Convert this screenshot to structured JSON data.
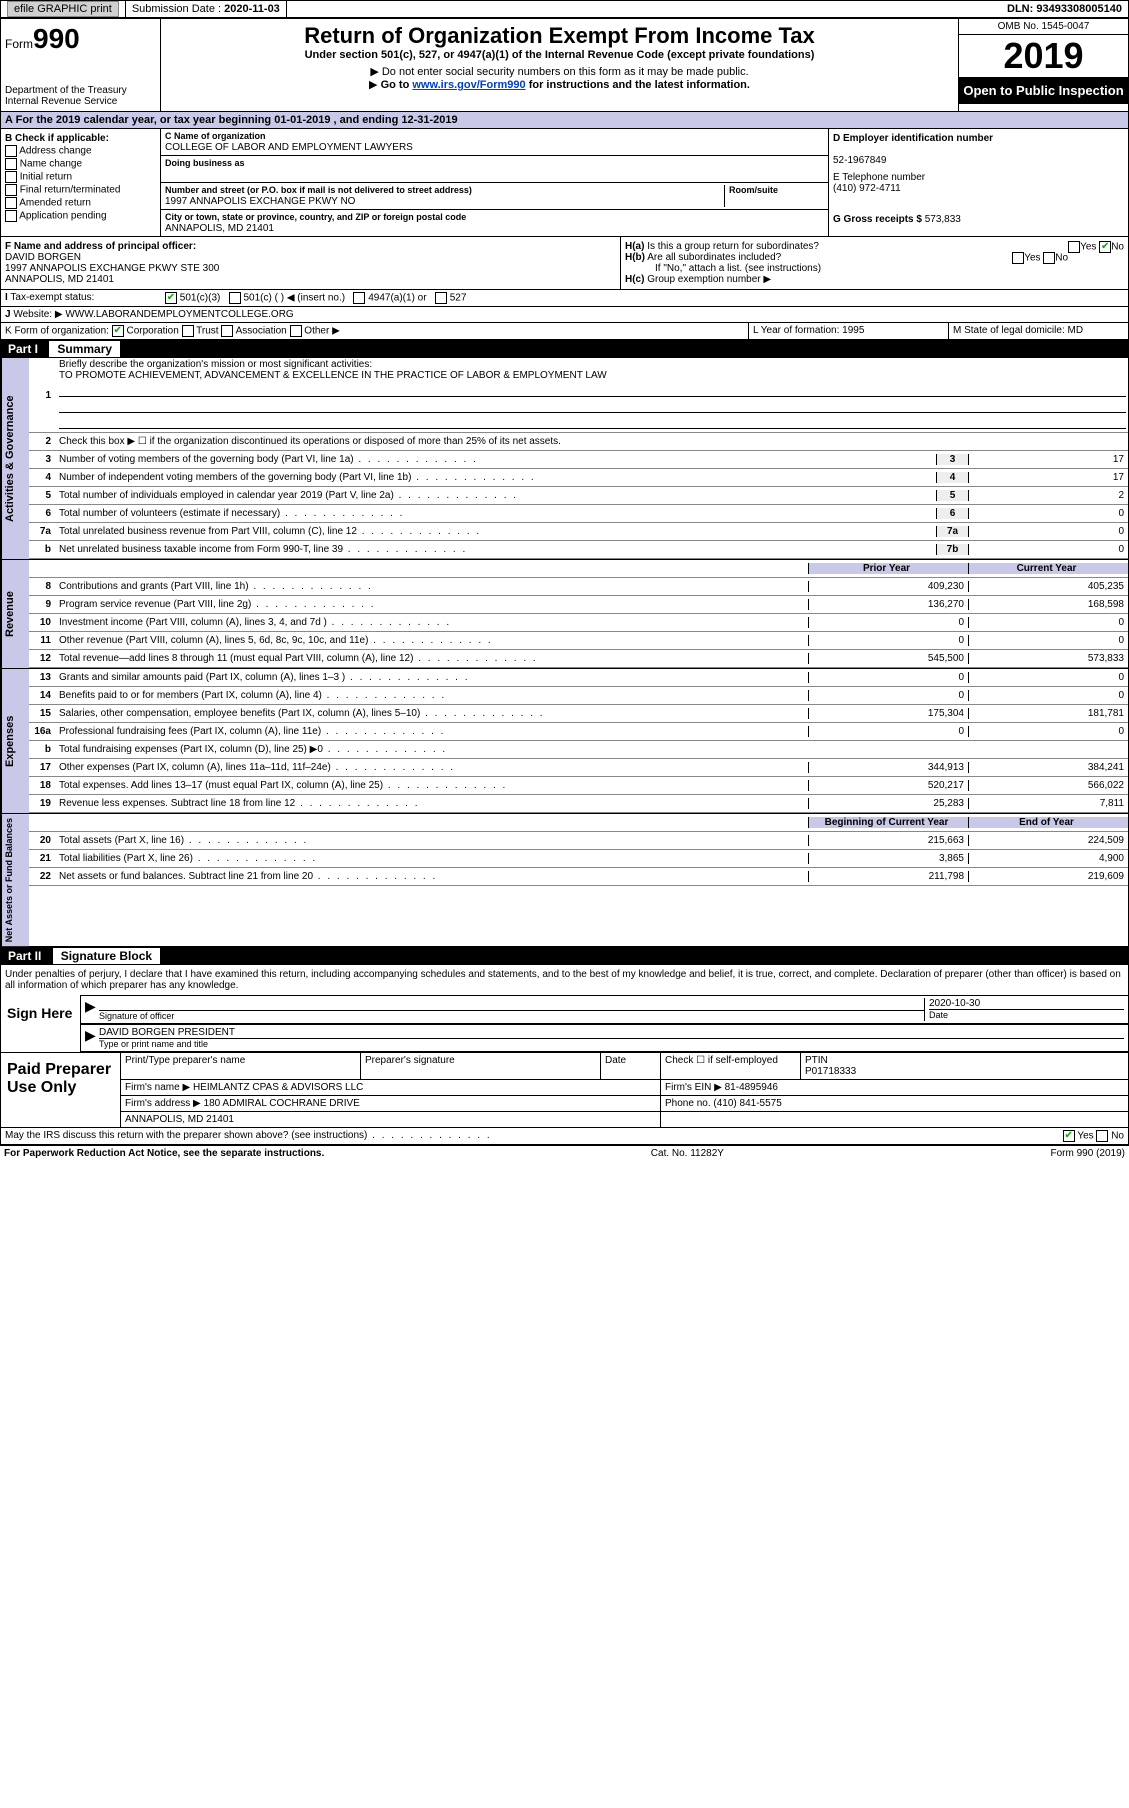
{
  "topbar": {
    "efile": "efile GRAPHIC print",
    "submission_label": "Submission Date :",
    "submission_date": "2020-11-03",
    "dln_label": "DLN:",
    "dln": "93493308005140"
  },
  "header": {
    "form_label": "Form",
    "form_number": "990",
    "dept": "Department of the Treasury\nInternal Revenue Service",
    "title": "Return of Organization Exempt From Income Tax",
    "subtitle": "Under section 501(c), 527, or 4947(a)(1) of the Internal Revenue Code (except private foundations)",
    "note1": "Do not enter social security numbers on this form as it may be made public.",
    "note2_pre": "Go to ",
    "note2_link": "www.irs.gov/Form990",
    "note2_post": " for instructions and the latest information.",
    "omb": "OMB No. 1545-0047",
    "year": "2019",
    "open": "Open to Public Inspection"
  },
  "period": "For the 2019 calendar year, or tax year beginning 01-01-2019   , and ending 12-31-2019",
  "checkB_label": "B Check if applicable:",
  "checkB": [
    "Address change",
    "Name change",
    "Initial return",
    "Final return/terminated",
    "Amended return",
    "Application pending"
  ],
  "colC": {
    "name_label": "C Name of organization",
    "name": "COLLEGE OF LABOR AND EMPLOYMENT LAWYERS",
    "dba_label": "Doing business as",
    "dba": "",
    "street_label": "Number and street (or P.O. box if mail is not delivered to street address)",
    "room_label": "Room/suite",
    "street": "1997 ANNAPOLIS EXCHANGE PKWY NO",
    "city_label": "City or town, state or province, country, and ZIP or foreign postal code",
    "city": "ANNAPOLIS, MD  21401"
  },
  "colD": {
    "ein_label": "D Employer identification number",
    "ein": "52-1967849",
    "phone_label": "E Telephone number",
    "phone": "(410) 972-4711",
    "gross_label": "G Gross receipts $",
    "gross": "573,833"
  },
  "colF": {
    "label": "F  Name and address of principal officer:",
    "name": "DAVID BORGEN",
    "addr1": "1997 ANNAPOLIS EXCHANGE PKWY STE 300",
    "addr2": "ANNAPOLIS, MD  21401"
  },
  "colH": {
    "ha": "Is this a group return for subordinates?",
    "hb": "Are all subordinates included?",
    "hb_note": "If \"No,\" attach a list. (see instructions)",
    "hc": "Group exemption number ▶",
    "yes": "Yes",
    "no": "No"
  },
  "sectionI": {
    "label": "Tax-exempt status:",
    "opt1": "501(c)(3)",
    "opt2": "501(c) (  ) ◀ (insert no.)",
    "opt3": "4947(a)(1) or",
    "opt4": "527"
  },
  "sectionJ": {
    "label": "Website: ▶",
    "value": "WWW.LABORANDEMPLOYMENTCOLLEGE.ORG"
  },
  "sectionK": {
    "label": "K Form of organization:",
    "opts": [
      "Corporation",
      "Trust",
      "Association",
      "Other ▶"
    ]
  },
  "sectionL": {
    "label": "L Year of formation:",
    "value": "1995"
  },
  "sectionM": {
    "label": "M State of legal domicile:",
    "value": "MD"
  },
  "part1": {
    "label": "Part I",
    "title": "Summary"
  },
  "gov": {
    "vlabel": "Activities & Governance",
    "l1": "Briefly describe the organization's mission or most significant activities:",
    "l1val": "TO PROMOTE ACHIEVEMENT, ADVANCEMENT & EXCELLENCE IN THE PRACTICE OF LABOR & EMPLOYMENT LAW",
    "l2": "Check this box ▶ ☐  if the organization discontinued its operations or disposed of more than 25% of its net assets.",
    "rows": [
      {
        "n": "3",
        "t": "Number of voting members of the governing body (Part VI, line 1a)",
        "b": "3",
        "v": "17"
      },
      {
        "n": "4",
        "t": "Number of independent voting members of the governing body (Part VI, line 1b)",
        "b": "4",
        "v": "17"
      },
      {
        "n": "5",
        "t": "Total number of individuals employed in calendar year 2019 (Part V, line 2a)",
        "b": "5",
        "v": "2"
      },
      {
        "n": "6",
        "t": "Total number of volunteers (estimate if necessary)",
        "b": "6",
        "v": "0"
      },
      {
        "n": "7a",
        "t": "Total unrelated business revenue from Part VIII, column (C), line 12",
        "b": "7a",
        "v": "0"
      },
      {
        "n": "b",
        "t": "Net unrelated business taxable income from Form 990-T, line 39",
        "b": "7b",
        "v": "0"
      }
    ]
  },
  "rev": {
    "vlabel": "Revenue",
    "hdr_prior": "Prior Year",
    "hdr_current": "Current Year",
    "rows": [
      {
        "n": "8",
        "t": "Contributions and grants (Part VIII, line 1h)",
        "p": "409,230",
        "c": "405,235"
      },
      {
        "n": "9",
        "t": "Program service revenue (Part VIII, line 2g)",
        "p": "136,270",
        "c": "168,598"
      },
      {
        "n": "10",
        "t": "Investment income (Part VIII, column (A), lines 3, 4, and 7d )",
        "p": "0",
        "c": "0"
      },
      {
        "n": "11",
        "t": "Other revenue (Part VIII, column (A), lines 5, 6d, 8c, 9c, 10c, and 11e)",
        "p": "0",
        "c": "0"
      },
      {
        "n": "12",
        "t": "Total revenue—add lines 8 through 11 (must equal Part VIII, column (A), line 12)",
        "p": "545,500",
        "c": "573,833"
      }
    ]
  },
  "exp": {
    "vlabel": "Expenses",
    "rows": [
      {
        "n": "13",
        "t": "Grants and similar amounts paid (Part IX, column (A), lines 1–3 )",
        "p": "0",
        "c": "0"
      },
      {
        "n": "14",
        "t": "Benefits paid to or for members (Part IX, column (A), line 4)",
        "p": "0",
        "c": "0"
      },
      {
        "n": "15",
        "t": "Salaries, other compensation, employee benefits (Part IX, column (A), lines 5–10)",
        "p": "175,304",
        "c": "181,781"
      },
      {
        "n": "16a",
        "t": "Professional fundraising fees (Part IX, column (A), line 11e)",
        "p": "0",
        "c": "0"
      },
      {
        "n": "b",
        "t": "Total fundraising expenses (Part IX, column (D), line 25) ▶0",
        "p": "",
        "c": "",
        "shade": true
      },
      {
        "n": "17",
        "t": "Other expenses (Part IX, column (A), lines 11a–11d, 11f–24e)",
        "p": "344,913",
        "c": "384,241"
      },
      {
        "n": "18",
        "t": "Total expenses. Add lines 13–17 (must equal Part IX, column (A), line 25)",
        "p": "520,217",
        "c": "566,022"
      },
      {
        "n": "19",
        "t": "Revenue less expenses. Subtract line 18 from line 12",
        "p": "25,283",
        "c": "7,811"
      }
    ]
  },
  "net": {
    "vlabel": "Net Assets or Fund Balances",
    "hdr_begin": "Beginning of Current Year",
    "hdr_end": "End of Year",
    "rows": [
      {
        "n": "20",
        "t": "Total assets (Part X, line 16)",
        "p": "215,663",
        "c": "224,509"
      },
      {
        "n": "21",
        "t": "Total liabilities (Part X, line 26)",
        "p": "3,865",
        "c": "4,900"
      },
      {
        "n": "22",
        "t": "Net assets or fund balances. Subtract line 21 from line 20",
        "p": "211,798",
        "c": "219,609"
      }
    ]
  },
  "part2": {
    "label": "Part II",
    "title": "Signature Block"
  },
  "sig": {
    "declaration": "Under penalties of perjury, I declare that I have examined this return, including accompanying schedules and statements, and to the best of my knowledge and belief, it is true, correct, and complete. Declaration of preparer (other than officer) is based on all information of which preparer has any knowledge.",
    "signhere": "Sign Here",
    "sig_of_officer": "Signature of officer",
    "date_label": "Date",
    "date": "2020-10-30",
    "typed": "DAVID BORGEN PRESIDENT",
    "typed_label": "Type or print name and title"
  },
  "prep": {
    "label": "Paid Preparer Use Only",
    "r1": [
      "Print/Type preparer's name",
      "Preparer's signature",
      "Date",
      "Check ☐ if self-employed",
      "PTIN\nP01718333"
    ],
    "firm_label": "Firm's name    ▶",
    "firm": "HEIMLANTZ CPAS & ADVISORS LLC",
    "ein_label": "Firm's EIN ▶",
    "ein": "81-4895946",
    "addr_label": "Firm's address ▶",
    "addr": "180 ADMIRAL COCHRANE DRIVE",
    "addr2": "ANNAPOLIS, MD  21401",
    "phone_label": "Phone no.",
    "phone": "(410) 841-5575"
  },
  "discuss": {
    "q": "May the IRS discuss this return with the preparer shown above? (see instructions)",
    "yes": "Yes",
    "no": "No"
  },
  "footer": {
    "l": "For Paperwork Reduction Act Notice, see the separate instructions.",
    "c": "Cat. No. 11282Y",
    "r": "Form 990 (2019)"
  }
}
